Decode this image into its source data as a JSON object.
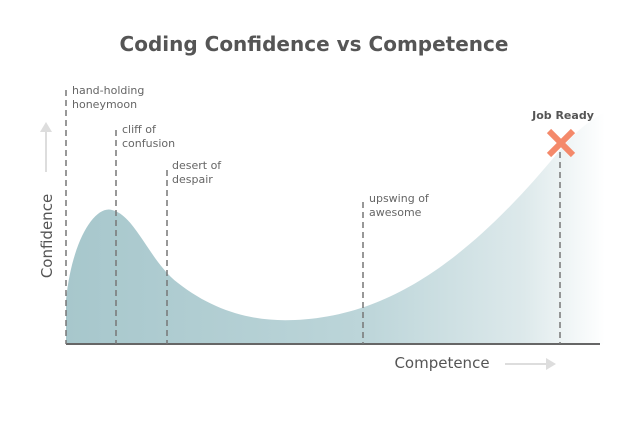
{
  "title": "Coding Confidence vs Competence",
  "y_label": "Confidence",
  "x_label": "Competence",
  "annotations": [
    {
      "lines": [
        "hand-holding",
        "honeymoon"
      ]
    },
    {
      "lines": [
        "cliff of",
        "confusion"
      ]
    },
    {
      "lines": [
        "desert of",
        "despair"
      ]
    },
    {
      "lines": [
        "upswing of",
        "awesome"
      ]
    }
  ],
  "goal": "Job Ready"
}
